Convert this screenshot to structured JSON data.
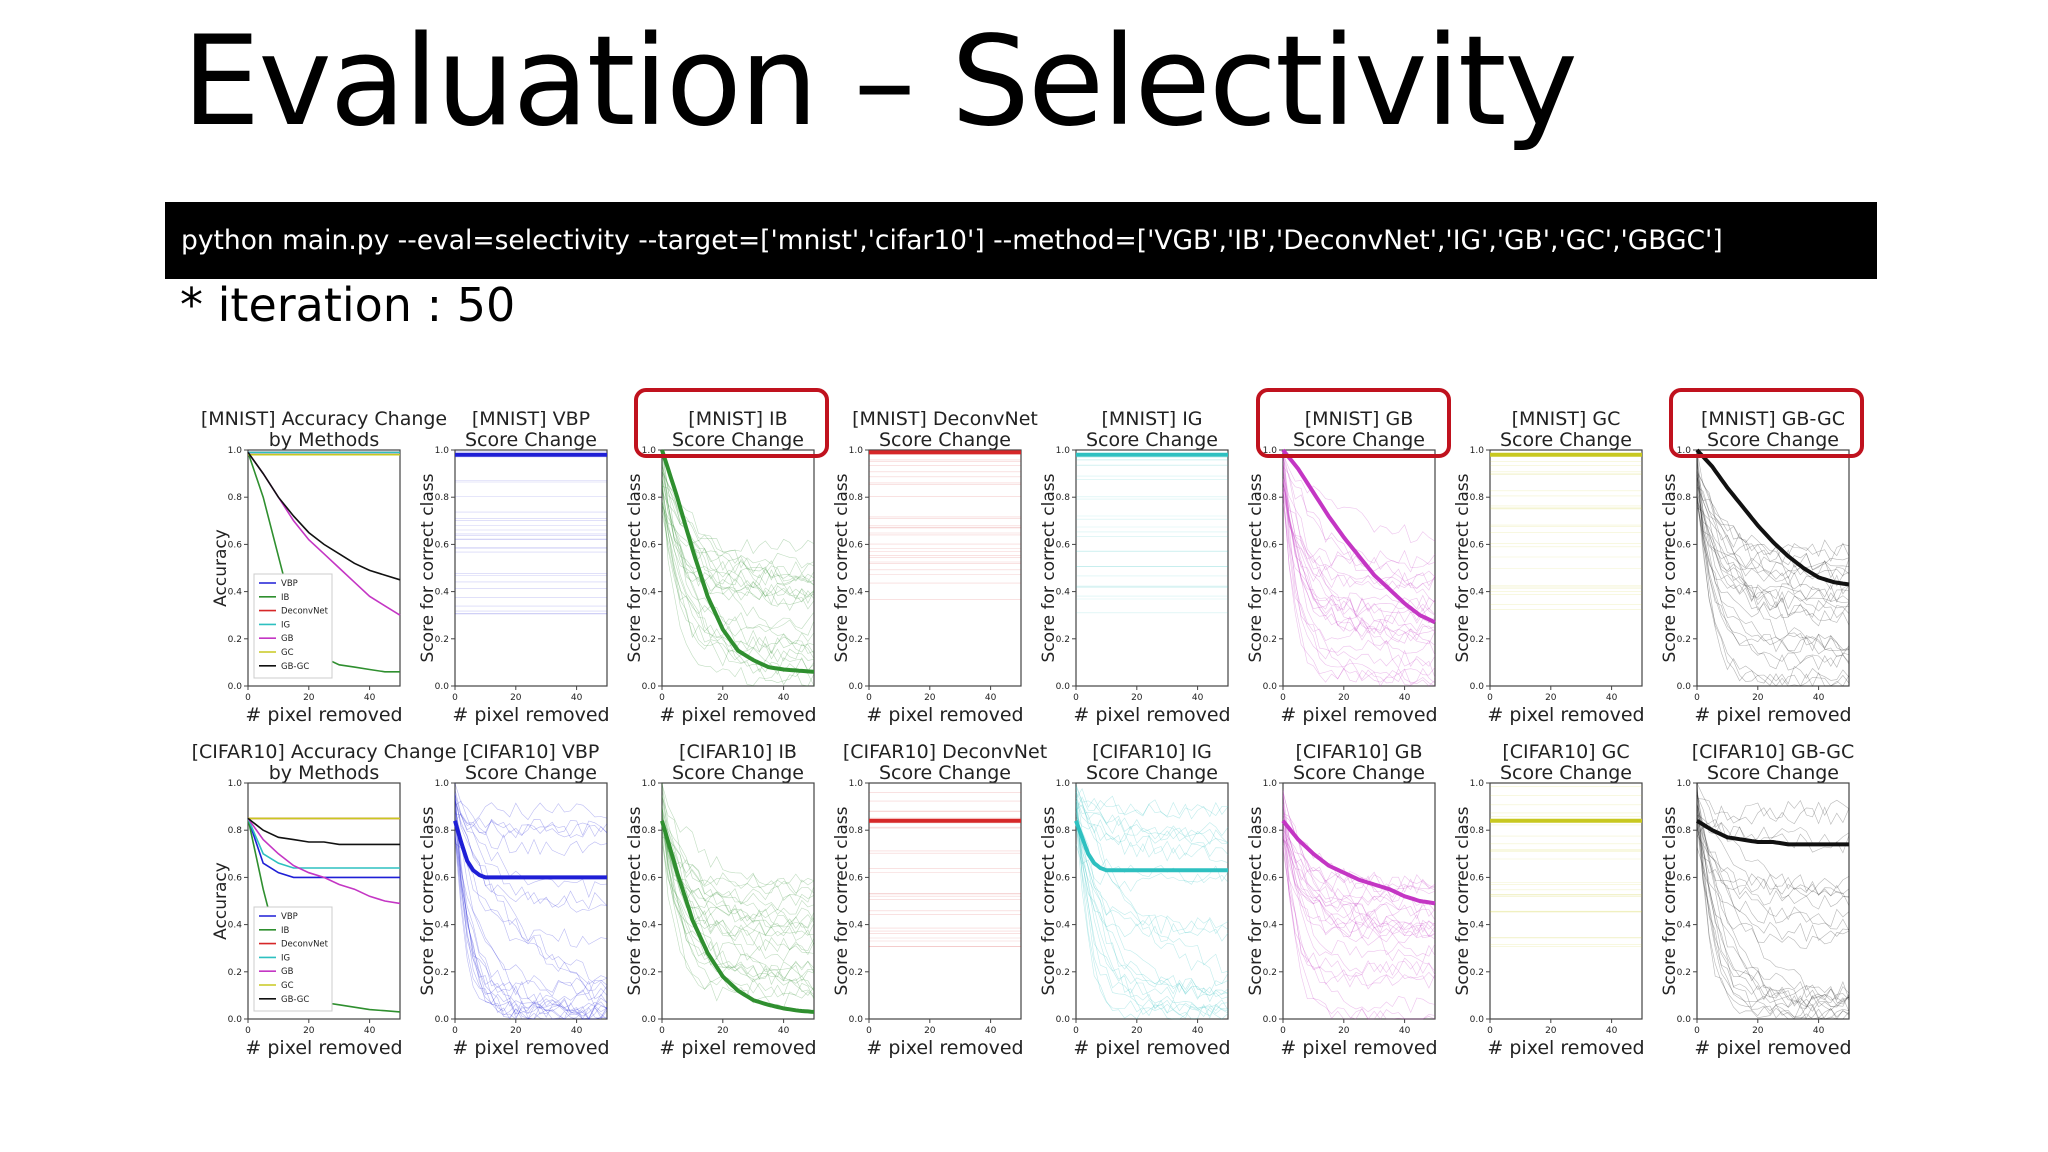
{
  "slide": {
    "title": "Evaluation – Selectivity",
    "command": "python main.py --eval=selectivity --target=['mnist','cifar10'] --method=['VGB','IB','DeconvNet','IG','GB','GC','GBGC']",
    "note": "* iteration : 50"
  },
  "colors": {
    "VBP": "#1f1fd6",
    "IB": "#2f8f2f",
    "DeconvNet": "#d62728",
    "IG": "#2ec0c0",
    "GB": "#c436c4",
    "GC": "#c8c820",
    "GB-GC": "#111111",
    "highlight": "#c0121e"
  },
  "highlighted_panels": [
    "mnist-ib",
    "mnist-gb",
    "mnist-gb-gc"
  ],
  "chart_data": [
    {
      "id": "mnist-accuracy",
      "type": "line",
      "title": "[MNIST] Accuracy Change\nby Methods",
      "xlabel": "# pixel removed",
      "ylabel": "Accuracy",
      "xlim": [
        0,
        50
      ],
      "ylim": [
        0,
        1
      ],
      "xticks": [
        "0",
        "20",
        "40"
      ],
      "yticks": [
        "0.0",
        "0.2",
        "0.4",
        "0.6",
        "0.8",
        "1.0"
      ],
      "legend": [
        "VBP",
        "IB",
        "DeconvNet",
        "IG",
        "GB",
        "GC",
        "GB-GC"
      ],
      "legend_position": "lower left",
      "x": [
        0,
        5,
        10,
        15,
        20,
        25,
        30,
        35,
        40,
        45,
        50
      ],
      "series": [
        {
          "name": "VBP",
          "values": [
            0.99,
            0.99,
            0.99,
            0.99,
            0.99,
            0.99,
            0.99,
            0.99,
            0.99,
            0.99,
            0.99
          ]
        },
        {
          "name": "IB",
          "values": [
            0.99,
            0.8,
            0.55,
            0.3,
            0.18,
            0.12,
            0.09,
            0.08,
            0.07,
            0.06,
            0.06
          ]
        },
        {
          "name": "DeconvNet",
          "values": [
            0.99,
            0.99,
            0.99,
            0.99,
            0.99,
            0.99,
            0.99,
            0.99,
            0.99,
            0.99,
            0.99
          ]
        },
        {
          "name": "IG",
          "values": [
            0.99,
            0.99,
            0.99,
            0.99,
            0.99,
            0.99,
            0.99,
            0.99,
            0.99,
            0.99,
            0.99
          ]
        },
        {
          "name": "GB",
          "values": [
            0.99,
            0.9,
            0.8,
            0.7,
            0.62,
            0.56,
            0.5,
            0.44,
            0.38,
            0.34,
            0.3
          ]
        },
        {
          "name": "GC",
          "values": [
            0.98,
            0.98,
            0.98,
            0.98,
            0.98,
            0.98,
            0.98,
            0.98,
            0.98,
            0.98,
            0.98
          ]
        },
        {
          "name": "GB-GC",
          "values": [
            0.99,
            0.9,
            0.8,
            0.72,
            0.65,
            0.6,
            0.56,
            0.52,
            0.49,
            0.47,
            0.45
          ]
        }
      ]
    },
    {
      "id": "mnist-vbp",
      "type": "line",
      "method": "VBP",
      "title": "[MNIST] VBP\nScore Change",
      "xlabel": "# pixel removed",
      "ylabel": "Score for correct class",
      "xlim": [
        0,
        50
      ],
      "ylim": [
        0,
        1
      ],
      "xticks": [
        "0",
        "20",
        "40"
      ],
      "yticks": [
        "0.0",
        "0.2",
        "0.4",
        "0.6",
        "0.8",
        "1.0"
      ],
      "x": [
        0,
        5,
        10,
        15,
        20,
        25,
        30,
        35,
        40,
        45,
        50
      ],
      "mean": [
        0.98,
        0.98,
        0.98,
        0.98,
        0.98,
        0.98,
        0.98,
        0.98,
        0.98,
        0.98,
        0.98
      ],
      "samples": "flat"
    },
    {
      "id": "mnist-ib",
      "type": "line",
      "method": "IB",
      "title": "[MNIST] IB\nScore Change",
      "xlabel": "# pixel removed",
      "ylabel": "Score for correct class",
      "xlim": [
        0,
        50
      ],
      "ylim": [
        0,
        1
      ],
      "xticks": [
        "0",
        "20",
        "40"
      ],
      "yticks": [
        "0.0",
        "0.2",
        "0.4",
        "0.6",
        "0.8",
        "1.0"
      ],
      "x": [
        0,
        5,
        10,
        15,
        20,
        25,
        30,
        35,
        40,
        45,
        50
      ],
      "mean": [
        1.0,
        0.8,
        0.58,
        0.38,
        0.24,
        0.15,
        0.11,
        0.08,
        0.07,
        0.065,
        0.06
      ],
      "samples": "decay"
    },
    {
      "id": "mnist-deconvnet",
      "type": "line",
      "method": "DeconvNet",
      "title": "[MNIST] DeconvNet\nScore Change",
      "xlabel": "# pixel removed",
      "ylabel": "Score for correct class",
      "xlim": [
        0,
        50
      ],
      "ylim": [
        0,
        1
      ],
      "xticks": [
        "0",
        "20",
        "40"
      ],
      "yticks": [
        "0.0",
        "0.2",
        "0.4",
        "0.6",
        "0.8",
        "1.0"
      ],
      "x": [
        0,
        5,
        10,
        15,
        20,
        25,
        30,
        35,
        40,
        45,
        50
      ],
      "mean": [
        0.99,
        0.99,
        0.99,
        0.99,
        0.99,
        0.99,
        0.99,
        0.99,
        0.99,
        0.99,
        0.99
      ],
      "samples": "flat"
    },
    {
      "id": "mnist-ig",
      "type": "line",
      "method": "IG",
      "title": "[MNIST] IG\nScore Change",
      "xlabel": "# pixel removed",
      "ylabel": "Score for correct class",
      "xlim": [
        0,
        50
      ],
      "ylim": [
        0,
        1
      ],
      "xticks": [
        "0",
        "20",
        "40"
      ],
      "yticks": [
        "0.0",
        "0.2",
        "0.4",
        "0.6",
        "0.8",
        "1.0"
      ],
      "x": [
        0,
        5,
        10,
        15,
        20,
        25,
        30,
        35,
        40,
        45,
        50
      ],
      "mean": [
        0.98,
        0.98,
        0.98,
        0.98,
        0.98,
        0.98,
        0.98,
        0.98,
        0.98,
        0.98,
        0.98
      ],
      "samples": "flat"
    },
    {
      "id": "mnist-gb",
      "type": "line",
      "method": "GB",
      "title": "[MNIST] GB\nScore Change",
      "xlabel": "# pixel removed",
      "ylabel": "Score for correct class",
      "xlim": [
        0,
        50
      ],
      "ylim": [
        0,
        1
      ],
      "xticks": [
        "0",
        "20",
        "40"
      ],
      "yticks": [
        "0.0",
        "0.2",
        "0.4",
        "0.6",
        "0.8",
        "1.0"
      ],
      "x": [
        0,
        5,
        10,
        15,
        20,
        25,
        30,
        35,
        40,
        45,
        50
      ],
      "mean": [
        1.0,
        0.92,
        0.82,
        0.72,
        0.63,
        0.55,
        0.47,
        0.41,
        0.35,
        0.3,
        0.27
      ],
      "samples": "decay"
    },
    {
      "id": "mnist-gc",
      "type": "line",
      "method": "GC",
      "title": "[MNIST] GC\nScore Change",
      "xlabel": "# pixel removed",
      "ylabel": "Score for correct class",
      "xlim": [
        0,
        50
      ],
      "ylim": [
        0,
        1
      ],
      "xticks": [
        "0",
        "20",
        "40"
      ],
      "yticks": [
        "0.0",
        "0.2",
        "0.4",
        "0.6",
        "0.8",
        "1.0"
      ],
      "x": [
        0,
        5,
        10,
        15,
        20,
        25,
        30,
        35,
        40,
        45,
        50
      ],
      "mean": [
        0.98,
        0.98,
        0.98,
        0.98,
        0.98,
        0.98,
        0.98,
        0.98,
        0.98,
        0.98,
        0.98
      ],
      "samples": "flat"
    },
    {
      "id": "mnist-gb-gc",
      "type": "line",
      "method": "GB-GC",
      "title": "[MNIST] GB-GC\nScore Change",
      "xlabel": "# pixel removed",
      "ylabel": "Score for correct class",
      "xlim": [
        0,
        50
      ],
      "ylim": [
        0,
        1
      ],
      "xticks": [
        "0",
        "20",
        "40"
      ],
      "yticks": [
        "0.0",
        "0.2",
        "0.4",
        "0.6",
        "0.8",
        "1.0"
      ],
      "x": [
        0,
        5,
        10,
        15,
        20,
        25,
        30,
        35,
        40,
        45,
        50
      ],
      "mean": [
        1.0,
        0.93,
        0.84,
        0.76,
        0.68,
        0.61,
        0.55,
        0.5,
        0.46,
        0.44,
        0.43
      ],
      "samples": "decay"
    },
    {
      "id": "cifar10-accuracy",
      "type": "line",
      "title": "[CIFAR10] Accuracy Change\nby Methods",
      "xlabel": "# pixel removed",
      "ylabel": "Accuracy",
      "xlim": [
        0,
        50
      ],
      "ylim": [
        0,
        1
      ],
      "xticks": [
        "0",
        "20",
        "40"
      ],
      "yticks": [
        "0.0",
        "0.2",
        "0.4",
        "0.6",
        "0.8",
        "1.0"
      ],
      "legend": [
        "VBP",
        "IB",
        "DeconvNet",
        "IG",
        "GB",
        "GC",
        "GB-GC"
      ],
      "legend_position": "lower left",
      "x": [
        0,
        5,
        10,
        15,
        20,
        25,
        30,
        35,
        40,
        45,
        50
      ],
      "series": [
        {
          "name": "VBP",
          "values": [
            0.85,
            0.66,
            0.62,
            0.6,
            0.6,
            0.6,
            0.6,
            0.6,
            0.6,
            0.6,
            0.6
          ]
        },
        {
          "name": "IB",
          "values": [
            0.85,
            0.55,
            0.3,
            0.16,
            0.1,
            0.07,
            0.06,
            0.05,
            0.04,
            0.035,
            0.03
          ]
        },
        {
          "name": "DeconvNet",
          "values": [
            0.85,
            0.85,
            0.85,
            0.85,
            0.85,
            0.85,
            0.85,
            0.85,
            0.85,
            0.85,
            0.85
          ]
        },
        {
          "name": "IG",
          "values": [
            0.85,
            0.7,
            0.66,
            0.64,
            0.64,
            0.64,
            0.64,
            0.64,
            0.64,
            0.64,
            0.64
          ]
        },
        {
          "name": "GB",
          "values": [
            0.85,
            0.76,
            0.7,
            0.65,
            0.62,
            0.6,
            0.57,
            0.55,
            0.52,
            0.5,
            0.49
          ]
        },
        {
          "name": "GC",
          "values": [
            0.85,
            0.85,
            0.85,
            0.85,
            0.85,
            0.85,
            0.85,
            0.85,
            0.85,
            0.85,
            0.85
          ]
        },
        {
          "name": "GB-GC",
          "values": [
            0.85,
            0.8,
            0.77,
            0.76,
            0.75,
            0.75,
            0.74,
            0.74,
            0.74,
            0.74,
            0.74
          ]
        }
      ]
    },
    {
      "id": "cifar10-vbp",
      "type": "line",
      "method": "VBP",
      "title": "[CIFAR10] VBP\nScore Change",
      "xlabel": "# pixel removed",
      "ylabel": "Score for correct class",
      "xlim": [
        0,
        50
      ],
      "ylim": [
        0,
        1
      ],
      "xticks": [
        "0",
        "20",
        "40"
      ],
      "yticks": [
        "0.0",
        "0.2",
        "0.4",
        "0.6",
        "0.8",
        "1.0"
      ],
      "x": [
        0,
        2,
        4,
        6,
        8,
        10,
        15,
        20,
        30,
        40,
        50
      ],
      "mean": [
        0.84,
        0.75,
        0.67,
        0.63,
        0.61,
        0.6,
        0.6,
        0.6,
        0.6,
        0.6,
        0.6
      ],
      "samples": "mixed"
    },
    {
      "id": "cifar10-ib",
      "type": "line",
      "method": "IB",
      "title": "[CIFAR10] IB\nScore Change",
      "xlabel": "# pixel removed",
      "ylabel": "Score for correct class",
      "xlim": [
        0,
        50
      ],
      "ylim": [
        0,
        1
      ],
      "xticks": [
        "0",
        "20",
        "40"
      ],
      "yticks": [
        "0.0",
        "0.2",
        "0.4",
        "0.6",
        "0.8",
        "1.0"
      ],
      "x": [
        0,
        5,
        10,
        15,
        20,
        25,
        30,
        35,
        40,
        45,
        50
      ],
      "mean": [
        0.84,
        0.62,
        0.42,
        0.28,
        0.18,
        0.12,
        0.08,
        0.06,
        0.045,
        0.035,
        0.03
      ],
      "samples": "decay"
    },
    {
      "id": "cifar10-deconvnet",
      "type": "line",
      "method": "DeconvNet",
      "title": "[CIFAR10] DeconvNet\nScore Change",
      "xlabel": "# pixel removed",
      "ylabel": "Score for correct class",
      "xlim": [
        0,
        50
      ],
      "ylim": [
        0,
        1
      ],
      "xticks": [
        "0",
        "20",
        "40"
      ],
      "yticks": [
        "0.0",
        "0.2",
        "0.4",
        "0.6",
        "0.8",
        "1.0"
      ],
      "x": [
        0,
        5,
        10,
        15,
        20,
        25,
        30,
        35,
        40,
        45,
        50
      ],
      "mean": [
        0.84,
        0.84,
        0.84,
        0.84,
        0.84,
        0.84,
        0.84,
        0.84,
        0.84,
        0.84,
        0.84
      ],
      "samples": "flat"
    },
    {
      "id": "cifar10-ig",
      "type": "line",
      "method": "IG",
      "title": "[CIFAR10] IG\nScore Change",
      "xlabel": "# pixel removed",
      "ylabel": "Score for correct class",
      "xlim": [
        0,
        50
      ],
      "ylim": [
        0,
        1
      ],
      "xticks": [
        "0",
        "20",
        "40"
      ],
      "yticks": [
        "0.0",
        "0.2",
        "0.4",
        "0.6",
        "0.8",
        "1.0"
      ],
      "x": [
        0,
        2,
        4,
        6,
        8,
        10,
        15,
        20,
        30,
        40,
        50
      ],
      "mean": [
        0.84,
        0.77,
        0.7,
        0.66,
        0.64,
        0.63,
        0.63,
        0.63,
        0.63,
        0.63,
        0.63
      ],
      "samples": "mixed"
    },
    {
      "id": "cifar10-gb",
      "type": "line",
      "method": "GB",
      "title": "[CIFAR10] GB\nScore Change",
      "xlabel": "# pixel removed",
      "ylabel": "Score for correct class",
      "xlim": [
        0,
        50
      ],
      "ylim": [
        0,
        1
      ],
      "xticks": [
        "0",
        "20",
        "40"
      ],
      "yticks": [
        "0.0",
        "0.2",
        "0.4",
        "0.6",
        "0.8",
        "1.0"
      ],
      "x": [
        0,
        5,
        10,
        15,
        20,
        25,
        30,
        35,
        40,
        45,
        50
      ],
      "mean": [
        0.84,
        0.76,
        0.7,
        0.65,
        0.62,
        0.59,
        0.57,
        0.55,
        0.52,
        0.5,
        0.49
      ],
      "samples": "decay"
    },
    {
      "id": "cifar10-gc",
      "type": "line",
      "method": "GC",
      "title": "[CIFAR10] GC\nScore Change",
      "xlabel": "# pixel removed",
      "ylabel": "Score for correct class",
      "xlim": [
        0,
        50
      ],
      "ylim": [
        0,
        1
      ],
      "xticks": [
        "0",
        "20",
        "40"
      ],
      "yticks": [
        "0.0",
        "0.2",
        "0.4",
        "0.6",
        "0.8",
        "1.0"
      ],
      "x": [
        0,
        5,
        10,
        15,
        20,
        25,
        30,
        35,
        40,
        45,
        50
      ],
      "mean": [
        0.84,
        0.84,
        0.84,
        0.84,
        0.84,
        0.84,
        0.84,
        0.84,
        0.84,
        0.84,
        0.84
      ],
      "samples": "flat"
    },
    {
      "id": "cifar10-gb-gc",
      "type": "line",
      "method": "GB-GC",
      "title": "[CIFAR10] GB-GC\nScore Change",
      "xlabel": "# pixel removed",
      "ylabel": "Score for correct class",
      "xlim": [
        0,
        50
      ],
      "ylim": [
        0,
        1
      ],
      "xticks": [
        "0",
        "20",
        "40"
      ],
      "yticks": [
        "0.0",
        "0.2",
        "0.4",
        "0.6",
        "0.8",
        "1.0"
      ],
      "x": [
        0,
        5,
        10,
        15,
        20,
        25,
        30,
        35,
        40,
        45,
        50
      ],
      "mean": [
        0.84,
        0.8,
        0.77,
        0.76,
        0.75,
        0.75,
        0.74,
        0.74,
        0.74,
        0.74,
        0.74
      ],
      "samples": "mixed"
    }
  ]
}
